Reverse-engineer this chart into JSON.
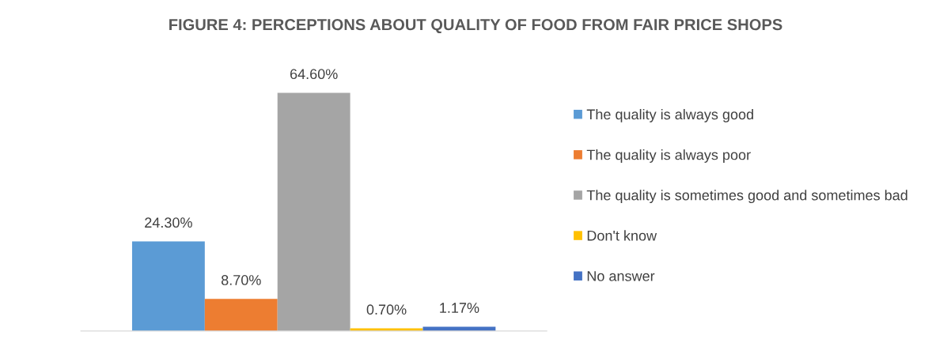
{
  "chart_data": {
    "type": "bar",
    "title": "FIGURE 4: PERCEPTIONS ABOUT QUALITY OF FOOD FROM FAIR PRICE SHOPS",
    "categories": [
      null
    ],
    "series": [
      {
        "name": "The quality is always good",
        "color": "#5b9bd5",
        "values": [
          24.3
        ],
        "value_labels": [
          "24.30%"
        ]
      },
      {
        "name": "The quality is always poor",
        "color": "#ed7d31",
        "values": [
          8.7
        ],
        "value_labels": [
          "8.70%"
        ]
      },
      {
        "name": "The quality is sometimes good and sometimes bad",
        "color": "#a5a5a5",
        "values": [
          64.6
        ],
        "value_labels": [
          "64.60%"
        ]
      },
      {
        "name": "Don't know",
        "color": "#ffc000",
        "values": [
          0.7
        ],
        "value_labels": [
          "0.70%"
        ]
      },
      {
        "name": "No answer",
        "color": "#4472c4",
        "values": [
          1.17
        ],
        "value_labels": [
          "1.17%"
        ]
      }
    ],
    "legend": "right"
  }
}
